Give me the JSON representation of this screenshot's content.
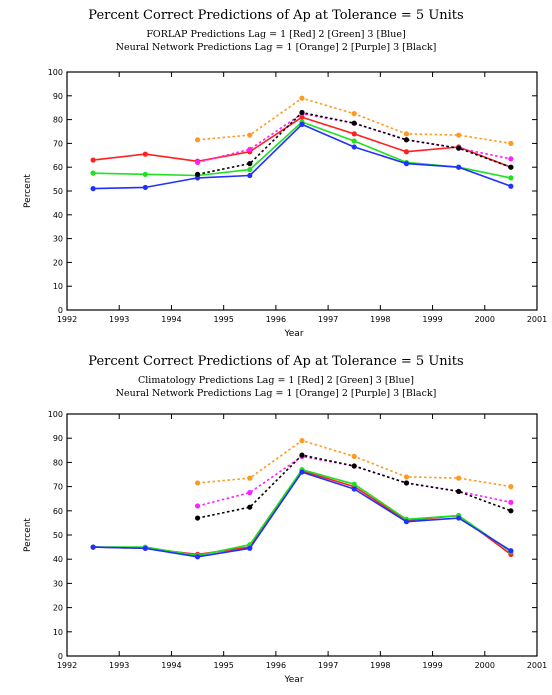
{
  "chart_data": [
    {
      "type": "line",
      "title": "Percent Correct Predictions of Ap at Tolerance = 5 Units",
      "subtitle_1": "FORLAP Predictions Lag = 1 [Red] 2 [Green] 3 [Blue]",
      "subtitle_2": "Neural Network Predictions Lag = 1 [Orange] 2 [Purple] 3 [Black]",
      "xlabel": "Year",
      "ylabel": "Percent",
      "xlim": [
        1992,
        2001
      ],
      "ylim": [
        0,
        100
      ],
      "xticks": [
        "1992",
        "1993",
        "1994",
        "1995",
        "1996",
        "1997",
        "1998",
        "1999",
        "2000",
        "2001"
      ],
      "yticks": [
        "0",
        "10",
        "20",
        "30",
        "40",
        "50",
        "60",
        "70",
        "80",
        "90",
        "100"
      ],
      "grid": false,
      "series": [
        {
          "color": "#ff2020",
          "dashed": false,
          "x": [
            1992.5,
            1993.5,
            1994.5,
            1995.5,
            1996.5,
            1997.5,
            1998.5,
            1999.5,
            2000.5
          ],
          "values": [
            63,
            65.5,
            62.5,
            66.5,
            81,
            74,
            66.5,
            68.5,
            60
          ]
        },
        {
          "color": "#20e020",
          "dashed": false,
          "x": [
            1992.5,
            1993.5,
            1994.5,
            1995.5,
            1996.5,
            1997.5,
            1998.5,
            1999.5,
            2000.5
          ],
          "values": [
            57.5,
            57,
            56.5,
            59,
            79,
            71,
            62,
            60,
            55.5
          ]
        },
        {
          "color": "#2030ff",
          "dashed": false,
          "x": [
            1992.5,
            1993.5,
            1994.5,
            1995.5,
            1996.5,
            1997.5,
            1998.5,
            1999.5,
            2000.5
          ],
          "values": [
            51,
            51.5,
            55.5,
            56.5,
            78,
            68.5,
            61.5,
            60,
            52
          ]
        },
        {
          "color": "#ff9a20",
          "dashed": true,
          "x": [
            1994.5,
            1995.5,
            1996.5,
            1997.5,
            1998.5,
            1999.5,
            2000.5
          ],
          "values": [
            71.5,
            73.5,
            89,
            82.5,
            74,
            73.5,
            70
          ]
        },
        {
          "color": "#ff20ff",
          "dashed": true,
          "x": [
            1994.5,
            1995.5,
            1996.5,
            1997.5,
            1998.5,
            1999.5,
            2000.5
          ],
          "values": [
            62,
            67.5,
            82.5,
            78.5,
            71.5,
            68,
            63.5
          ]
        },
        {
          "color": "#000000",
          "dashed": true,
          "x": [
            1994.5,
            1995.5,
            1996.5,
            1997.5,
            1998.5,
            1999.5,
            2000.5
          ],
          "values": [
            57,
            61.5,
            83,
            78.5,
            71.5,
            68,
            60
          ]
        }
      ]
    },
    {
      "type": "line",
      "title": "Percent Correct Predictions of Ap at Tolerance = 5 Units",
      "subtitle_1": "Climatology Predictions Lag = 1 [Red] 2 [Green] 3 [Blue]",
      "subtitle_2": "Neural Network Predictions Lag = 1 [Orange] 2 [Purple] 3 [Black]",
      "xlabel": "Year",
      "ylabel": "Percent",
      "xlim": [
        1992,
        2001
      ],
      "ylim": [
        0,
        100
      ],
      "xticks": [
        "1992",
        "1993",
        "1994",
        "1995",
        "1996",
        "1997",
        "1998",
        "1999",
        "2000",
        "2001"
      ],
      "yticks": [
        "0",
        "10",
        "20",
        "30",
        "40",
        "50",
        "60",
        "70",
        "80",
        "90",
        "100"
      ],
      "grid": false,
      "series": [
        {
          "color": "#ff2020",
          "dashed": false,
          "x": [
            1992.5,
            1993.5,
            1994.5,
            1995.5,
            1996.5,
            1997.5,
            1998.5,
            1999.5,
            2000.5
          ],
          "values": [
            45,
            44.5,
            42,
            45,
            76.5,
            70,
            56,
            58,
            42
          ]
        },
        {
          "color": "#20e020",
          "dashed": false,
          "x": [
            1992.5,
            1993.5,
            1994.5,
            1995.5,
            1996.5,
            1997.5,
            1998.5,
            1999.5,
            2000.5
          ],
          "values": [
            45,
            45,
            41.5,
            46,
            77,
            71,
            56.5,
            58,
            43
          ]
        },
        {
          "color": "#2030ff",
          "dashed": false,
          "x": [
            1992.5,
            1993.5,
            1994.5,
            1995.5,
            1996.5,
            1997.5,
            1998.5,
            1999.5,
            2000.5
          ],
          "values": [
            45,
            44.5,
            41,
            44.5,
            76,
            69,
            55.5,
            57,
            43.5
          ]
        },
        {
          "color": "#ff9a20",
          "dashed": true,
          "x": [
            1994.5,
            1995.5,
            1996.5,
            1997.5,
            1998.5,
            1999.5,
            2000.5
          ],
          "values": [
            71.5,
            73.5,
            89,
            82.5,
            74,
            73.5,
            70
          ]
        },
        {
          "color": "#ff20ff",
          "dashed": true,
          "x": [
            1994.5,
            1995.5,
            1996.5,
            1997.5,
            1998.5,
            1999.5,
            2000.5
          ],
          "values": [
            62,
            67.5,
            82.5,
            78.5,
            71.5,
            68,
            63.5
          ]
        },
        {
          "color": "#000000",
          "dashed": true,
          "x": [
            1994.5,
            1995.5,
            1996.5,
            1997.5,
            1998.5,
            1999.5,
            2000.5
          ],
          "values": [
            57,
            61.5,
            83,
            78.5,
            71.5,
            68,
            60
          ]
        }
      ]
    }
  ]
}
